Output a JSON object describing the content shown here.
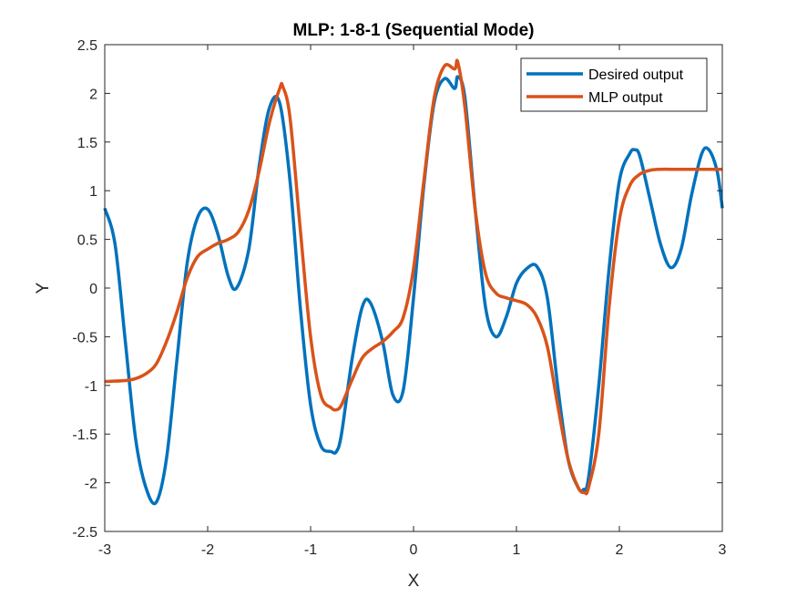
{
  "chart_data": {
    "type": "line",
    "title": "MLP: 1-8-1 (Sequential Mode)",
    "xlabel": "X",
    "ylabel": "Y",
    "xlim": [
      -3,
      3
    ],
    "ylim": [
      -2.5,
      2.5
    ],
    "xticks": [
      -3,
      -2,
      -1,
      0,
      1,
      2,
      3
    ],
    "xtick_labels": [
      "-3",
      "-2",
      "-1",
      "0",
      "1",
      "2",
      "3"
    ],
    "yticks": [
      -2.5,
      -2,
      -1.5,
      -1,
      -0.5,
      0,
      0.5,
      1,
      1.5,
      2,
      2.5
    ],
    "ytick_labels": [
      "-2.5",
      "-2",
      "-1.5",
      "-1",
      "-0.5",
      "0",
      "0.5",
      "1",
      "1.5",
      "2",
      "2.5"
    ],
    "grid": false,
    "legend_position": "top-right",
    "series": [
      {
        "name": "Desired output",
        "color": "#0072BD",
        "x": [
          -3.0,
          -2.9,
          -2.8,
          -2.7,
          -2.6,
          -2.5,
          -2.4,
          -2.3,
          -2.2,
          -2.1,
          -2.0,
          -1.9,
          -1.8,
          -1.72,
          -1.6,
          -1.5,
          -1.4,
          -1.3,
          -1.2,
          -1.1,
          -1.0,
          -0.9,
          -0.8,
          -0.75,
          -0.7,
          -0.6,
          -0.5,
          -0.42,
          -0.3,
          -0.2,
          -0.1,
          0.0,
          0.1,
          0.2,
          0.3,
          0.4,
          0.43,
          0.5,
          0.6,
          0.7,
          0.8,
          0.9,
          1.0,
          1.1,
          1.2,
          1.3,
          1.4,
          1.5,
          1.6,
          1.65,
          1.7,
          1.8,
          1.9,
          2.0,
          2.1,
          2.15,
          2.2,
          2.3,
          2.4,
          2.5,
          2.6,
          2.7,
          2.8,
          2.87,
          2.95,
          3.0
        ],
        "y": [
          0.82,
          0.45,
          -0.55,
          -1.55,
          -2.05,
          -2.2,
          -1.75,
          -0.75,
          0.25,
          0.72,
          0.81,
          0.55,
          0.12,
          0.0,
          0.4,
          1.25,
          1.85,
          1.9,
          1.1,
          -0.2,
          -1.2,
          -1.62,
          -1.68,
          -1.68,
          -1.5,
          -0.75,
          -0.2,
          -0.15,
          -0.55,
          -1.1,
          -1.05,
          -0.1,
          1.05,
          1.9,
          2.15,
          2.05,
          2.17,
          1.95,
          0.8,
          -0.2,
          -0.5,
          -0.3,
          0.05,
          0.2,
          0.22,
          -0.1,
          -1.0,
          -1.75,
          -2.05,
          -2.07,
          -1.95,
          -1.0,
          0.2,
          1.1,
          1.38,
          1.42,
          1.35,
          0.9,
          0.45,
          0.21,
          0.4,
          0.95,
          1.38,
          1.42,
          1.2,
          0.82
        ]
      },
      {
        "name": "MLP output",
        "color": "#D95319",
        "x": [
          -3.0,
          -2.8,
          -2.7,
          -2.6,
          -2.5,
          -2.4,
          -2.3,
          -2.2,
          -2.1,
          -2.0,
          -1.9,
          -1.8,
          -1.7,
          -1.6,
          -1.5,
          -1.4,
          -1.3,
          -1.27,
          -1.2,
          -1.1,
          -1.0,
          -0.9,
          -0.8,
          -0.75,
          -0.7,
          -0.6,
          -0.5,
          -0.4,
          -0.3,
          -0.2,
          -0.1,
          0.0,
          0.1,
          0.2,
          0.3,
          0.4,
          0.43,
          0.5,
          0.6,
          0.7,
          0.8,
          0.9,
          1.0,
          1.1,
          1.2,
          1.3,
          1.4,
          1.5,
          1.6,
          1.66,
          1.7,
          1.8,
          1.9,
          2.0,
          2.1,
          2.2,
          2.3,
          2.4,
          2.5,
          2.6,
          2.8,
          3.0
        ],
        "y": [
          -0.96,
          -0.95,
          -0.93,
          -0.88,
          -0.78,
          -0.55,
          -0.25,
          0.1,
          0.32,
          0.4,
          0.46,
          0.5,
          0.58,
          0.8,
          1.2,
          1.7,
          2.05,
          2.07,
          1.75,
          0.6,
          -0.5,
          -1.1,
          -1.23,
          -1.25,
          -1.2,
          -0.95,
          -0.72,
          -0.62,
          -0.55,
          -0.45,
          -0.3,
          0.2,
          1.1,
          1.95,
          2.28,
          2.25,
          2.32,
          1.85,
          0.8,
          0.15,
          -0.05,
          -0.1,
          -0.13,
          -0.17,
          -0.3,
          -0.6,
          -1.2,
          -1.75,
          -2.05,
          -2.1,
          -2.05,
          -1.5,
          -0.2,
          0.7,
          1.05,
          1.17,
          1.21,
          1.22,
          1.22,
          1.22,
          1.22,
          1.22
        ]
      }
    ]
  }
}
